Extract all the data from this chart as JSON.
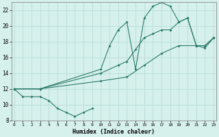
{
  "xlabel": "Humidex (Indice chaleur)",
  "bg_color": "#d6f0ec",
  "grid_color": "#b8ddd8",
  "line_color": "#2a7a6a",
  "xlim": [
    0,
    23
  ],
  "ylim": [
    8,
    23
  ],
  "xticks": [
    0,
    1,
    2,
    3,
    4,
    5,
    6,
    7,
    8,
    9,
    10,
    11,
    12,
    13,
    14,
    15,
    16,
    17,
    18,
    19,
    20,
    21,
    22,
    23
  ],
  "yticks": [
    8,
    10,
    12,
    14,
    16,
    18,
    20,
    22
  ],
  "lines": [
    {
      "x": [
        0,
        1,
        2,
        3,
        4,
        5,
        6,
        7,
        8,
        9
      ],
      "y": [
        12,
        11,
        11,
        11,
        10.5,
        9.5,
        9,
        8.5,
        9,
        9.5
      ]
    },
    {
      "x": [
        0,
        3,
        10,
        13,
        15,
        17,
        19,
        21,
        22,
        23
      ],
      "y": [
        12,
        12,
        13,
        13.5,
        15,
        16.5,
        17.5,
        17.5,
        17.5,
        18.5
      ]
    },
    {
      "x": [
        0,
        3,
        10,
        12,
        13,
        14,
        15,
        16,
        17,
        18,
        19,
        20,
        21,
        22,
        23
      ],
      "y": [
        12,
        12,
        14,
        15,
        15.5,
        17,
        18.5,
        19,
        19.5,
        19.5,
        20.5,
        21,
        17.5,
        17.5,
        18.5
      ]
    },
    {
      "x": [
        0,
        3,
        10,
        11,
        12,
        13,
        14,
        15,
        16,
        17,
        18,
        19,
        20,
        21,
        22,
        23
      ],
      "y": [
        12,
        12,
        14.5,
        17.5,
        19.5,
        20.5,
        14.5,
        21,
        22.5,
        23,
        22.5,
        20.5,
        21,
        17.5,
        17.2,
        18.5
      ]
    }
  ]
}
